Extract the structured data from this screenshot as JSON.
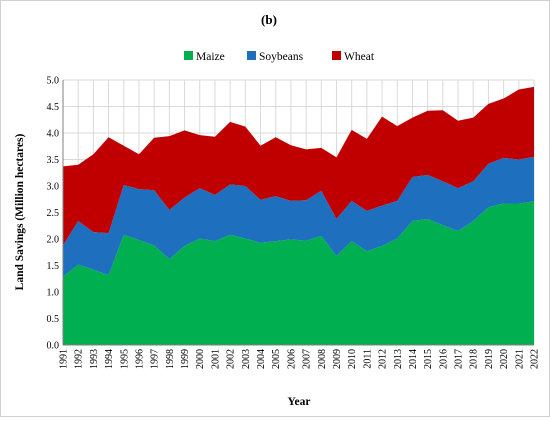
{
  "chart_data": {
    "type": "area",
    "stacked": true,
    "panel_label": "(b)",
    "xlabel": "Year",
    "ylabel": "Land Savings (Million hectares)",
    "ylim": [
      0,
      5
    ],
    "yticks": [
      "0.0",
      "0.5",
      "1.0",
      "1.5",
      "2.0",
      "2.5",
      "3.0",
      "3.5",
      "4.0",
      "4.5",
      "5.0"
    ],
    "grid": true,
    "legend_position": "top-center",
    "x": [
      1991,
      1992,
      1993,
      1994,
      1995,
      1996,
      1997,
      1998,
      1999,
      2000,
      2001,
      2002,
      2003,
      2004,
      2005,
      2006,
      2007,
      2008,
      2009,
      2010,
      2011,
      2012,
      2013,
      2014,
      2015,
      2016,
      2017,
      2018,
      2019,
      2020,
      2021,
      2022
    ],
    "series": [
      {
        "name": "Maize",
        "color": "#00b050",
        "values": [
          1.29,
          1.52,
          1.42,
          1.32,
          2.08,
          1.98,
          1.88,
          1.62,
          1.87,
          2.01,
          1.96,
          2.08,
          2.01,
          1.93,
          1.96,
          1.99,
          1.97,
          2.06,
          1.68,
          1.96,
          1.77,
          1.87,
          2.01,
          2.34,
          2.38,
          2.26,
          2.15,
          2.34,
          2.6,
          2.67,
          2.67,
          2.71
        ]
      },
      {
        "name": "Soybeans",
        "color": "#1f6fbf",
        "values": [
          0.59,
          0.82,
          0.71,
          0.79,
          0.94,
          0.96,
          1.04,
          0.93,
          0.91,
          0.95,
          0.87,
          0.95,
          0.99,
          0.81,
          0.85,
          0.73,
          0.76,
          0.85,
          0.7,
          0.76,
          0.76,
          0.76,
          0.71,
          0.83,
          0.83,
          0.83,
          0.81,
          0.75,
          0.82,
          0.86,
          0.83,
          0.84
        ]
      },
      {
        "name": "Wheat",
        "color": "#c00000",
        "values": [
          1.49,
          1.06,
          1.47,
          1.81,
          0.74,
          0.66,
          0.99,
          1.39,
          1.27,
          1.0,
          1.1,
          1.18,
          1.12,
          1.02,
          1.11,
          1.05,
          0.96,
          0.81,
          1.16,
          1.34,
          1.36,
          1.68,
          1.41,
          1.12,
          1.21,
          1.34,
          1.27,
          1.2,
          1.13,
          1.12,
          1.32,
          1.32
        ]
      }
    ]
  }
}
